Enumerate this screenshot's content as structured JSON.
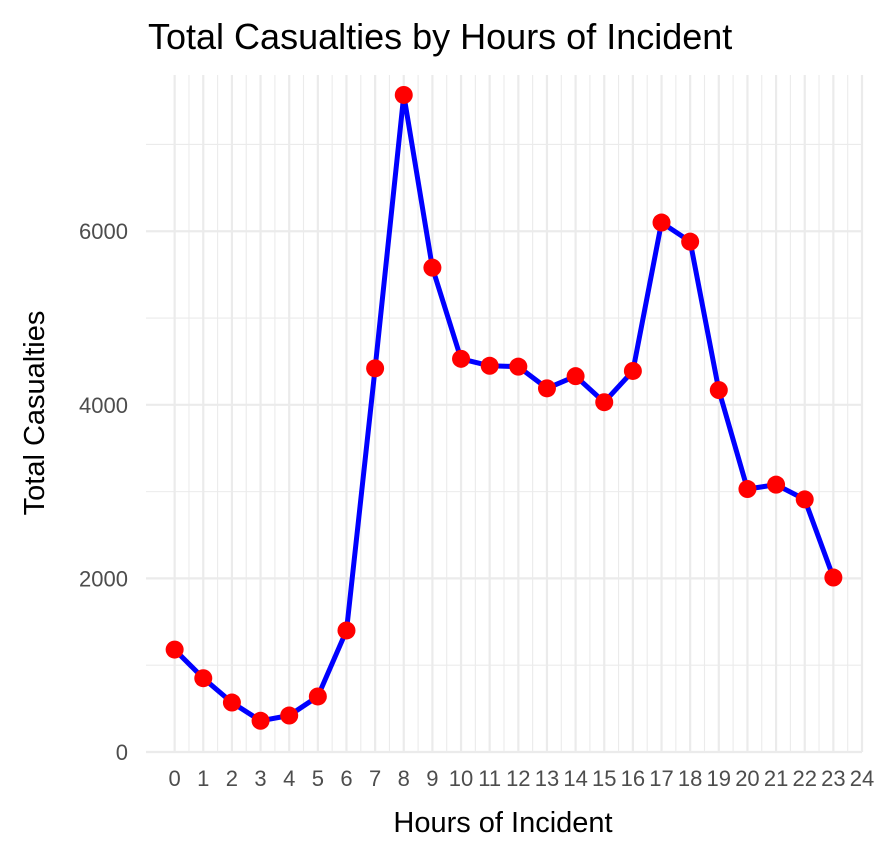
{
  "chart_data": {
    "type": "line",
    "title": "Total Casualties by Hours of Incident",
    "xlabel": "Hours of Incident",
    "ylabel": "Total Casualties",
    "x": [
      0,
      1,
      2,
      3,
      4,
      5,
      6,
      7,
      8,
      9,
      10,
      11,
      12,
      13,
      14,
      15,
      16,
      17,
      18,
      19,
      20,
      21,
      22,
      23
    ],
    "y": [
      1180,
      850,
      570,
      360,
      420,
      640,
      1400,
      4420,
      7570,
      5580,
      4530,
      4450,
      4440,
      4190,
      4330,
      4030,
      4390,
      6100,
      5880,
      4170,
      3030,
      3080,
      2910,
      2010
    ],
    "xlim": [
      -1,
      24
    ],
    "ylim": [
      0,
      7800
    ],
    "x_ticks": [
      "0",
      "1",
      "2",
      "3",
      "4",
      "5",
      "6",
      "7",
      "8",
      "9",
      "10",
      "11",
      "12",
      "13",
      "14",
      "15",
      "16",
      "17",
      "18",
      "19",
      "20",
      "21",
      "22",
      "23",
      "24"
    ],
    "y_ticks": [
      "0",
      "2000",
      "4000",
      "6000"
    ],
    "grid": true,
    "legend": "none",
    "colors": {
      "line": "#0000ff",
      "points": "#ff0000",
      "grid": "#ebebeb",
      "tick_text": "#4d4d4d"
    }
  }
}
